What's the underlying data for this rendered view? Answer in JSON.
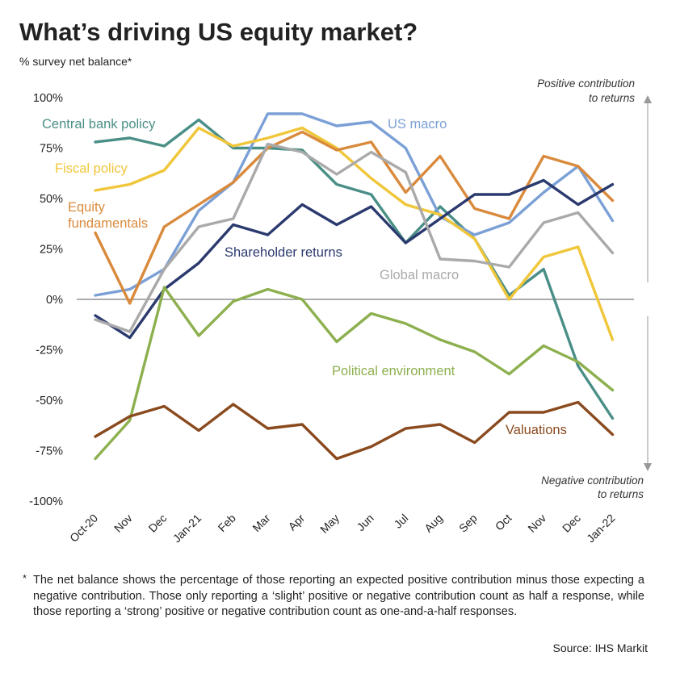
{
  "header": {
    "title": "What’s driving US equity market?",
    "subtitle": "% survey net balance*"
  },
  "chart_data": {
    "type": "line",
    "title": "What’s driving US equity market?",
    "ylabel": "% survey net balance*",
    "ylim": [
      -100,
      100
    ],
    "yticks": [
      100,
      75,
      50,
      25,
      0,
      -25,
      -50,
      -75,
      -100
    ],
    "ytick_labels": [
      "100%",
      "75%",
      "50%",
      "25%",
      "0%",
      "-25%",
      "-50%",
      "-75%",
      "-100%"
    ],
    "categories": [
      "Oct-20",
      "Nov",
      "Dec",
      "Jan-21",
      "Feb",
      "Mar",
      "Apr",
      "May",
      "Jun",
      "Jul",
      "Aug",
      "Sep",
      "Oct",
      "Nov",
      "Dec",
      "Jan-22"
    ],
    "grid": false,
    "annotations": {
      "positive": [
        "Positive contribution",
        "to returns"
      ],
      "negative": [
        "Negative contribution",
        "to returns"
      ]
    },
    "series": [
      {
        "name": "Central bank policy",
        "color": "#4a8f87",
        "values": [
          78,
          80,
          76,
          89,
          75,
          75,
          74,
          57,
          52,
          28,
          46,
          30,
          2,
          15,
          -33,
          -59
        ]
      },
      {
        "name": "US macro",
        "color": "#7ba0d6",
        "values": [
          2,
          5,
          15,
          44,
          58,
          92,
          92,
          86,
          88,
          75,
          41,
          32,
          38,
          53,
          66,
          39
        ]
      },
      {
        "name": "Fiscal policy",
        "color": "#f0c63a",
        "values": [
          54,
          57,
          64,
          85,
          76,
          80,
          85,
          75,
          60,
          47,
          42,
          30,
          0,
          21,
          26,
          -20
        ]
      },
      {
        "name": "Equity fundamentals",
        "color": "#d98a3c",
        "values": [
          33,
          -2,
          36,
          47,
          58,
          75,
          83,
          74,
          78,
          53,
          71,
          45,
          40,
          71,
          66,
          49
        ]
      },
      {
        "name": "Shareholder returns",
        "color": "#2b3a6e",
        "values": [
          -8,
          -19,
          5,
          18,
          37,
          32,
          47,
          37,
          46,
          28,
          40,
          52,
          52,
          59,
          47,
          57
        ]
      },
      {
        "name": "Global macro",
        "color": "#aaaaaa",
        "values": [
          -10,
          -16,
          15,
          36,
          40,
          77,
          73,
          62,
          73,
          63,
          20,
          19,
          16,
          38,
          43,
          23
        ]
      },
      {
        "name": "Political environment",
        "color": "#8db04f",
        "values": [
          -79,
          -60,
          6,
          -18,
          -1,
          5,
          0,
          -21,
          -7,
          -12,
          -20,
          -26,
          -37,
          -23,
          -31,
          -45
        ]
      },
      {
        "name": "Valuations",
        "color": "#8a4a1e",
        "values": [
          -68,
          -58,
          -53,
          -65,
          -52,
          -64,
          -62,
          -79,
          -73,
          -64,
          -62,
          -71,
          -56,
          -56,
          -51,
          -67
        ]
      }
    ]
  },
  "footnote": {
    "marker": "*",
    "text": "The net balance shows the percentage of those reporting an expected positive contribution minus those expecting a negative contribution. Those only reporting a ‘slight’ positive or negative contribution count as half a response, while those reporting a ‘strong’ positive or negative contribution count as one-and-a-half responses."
  },
  "source": "Source: IHS Markit"
}
